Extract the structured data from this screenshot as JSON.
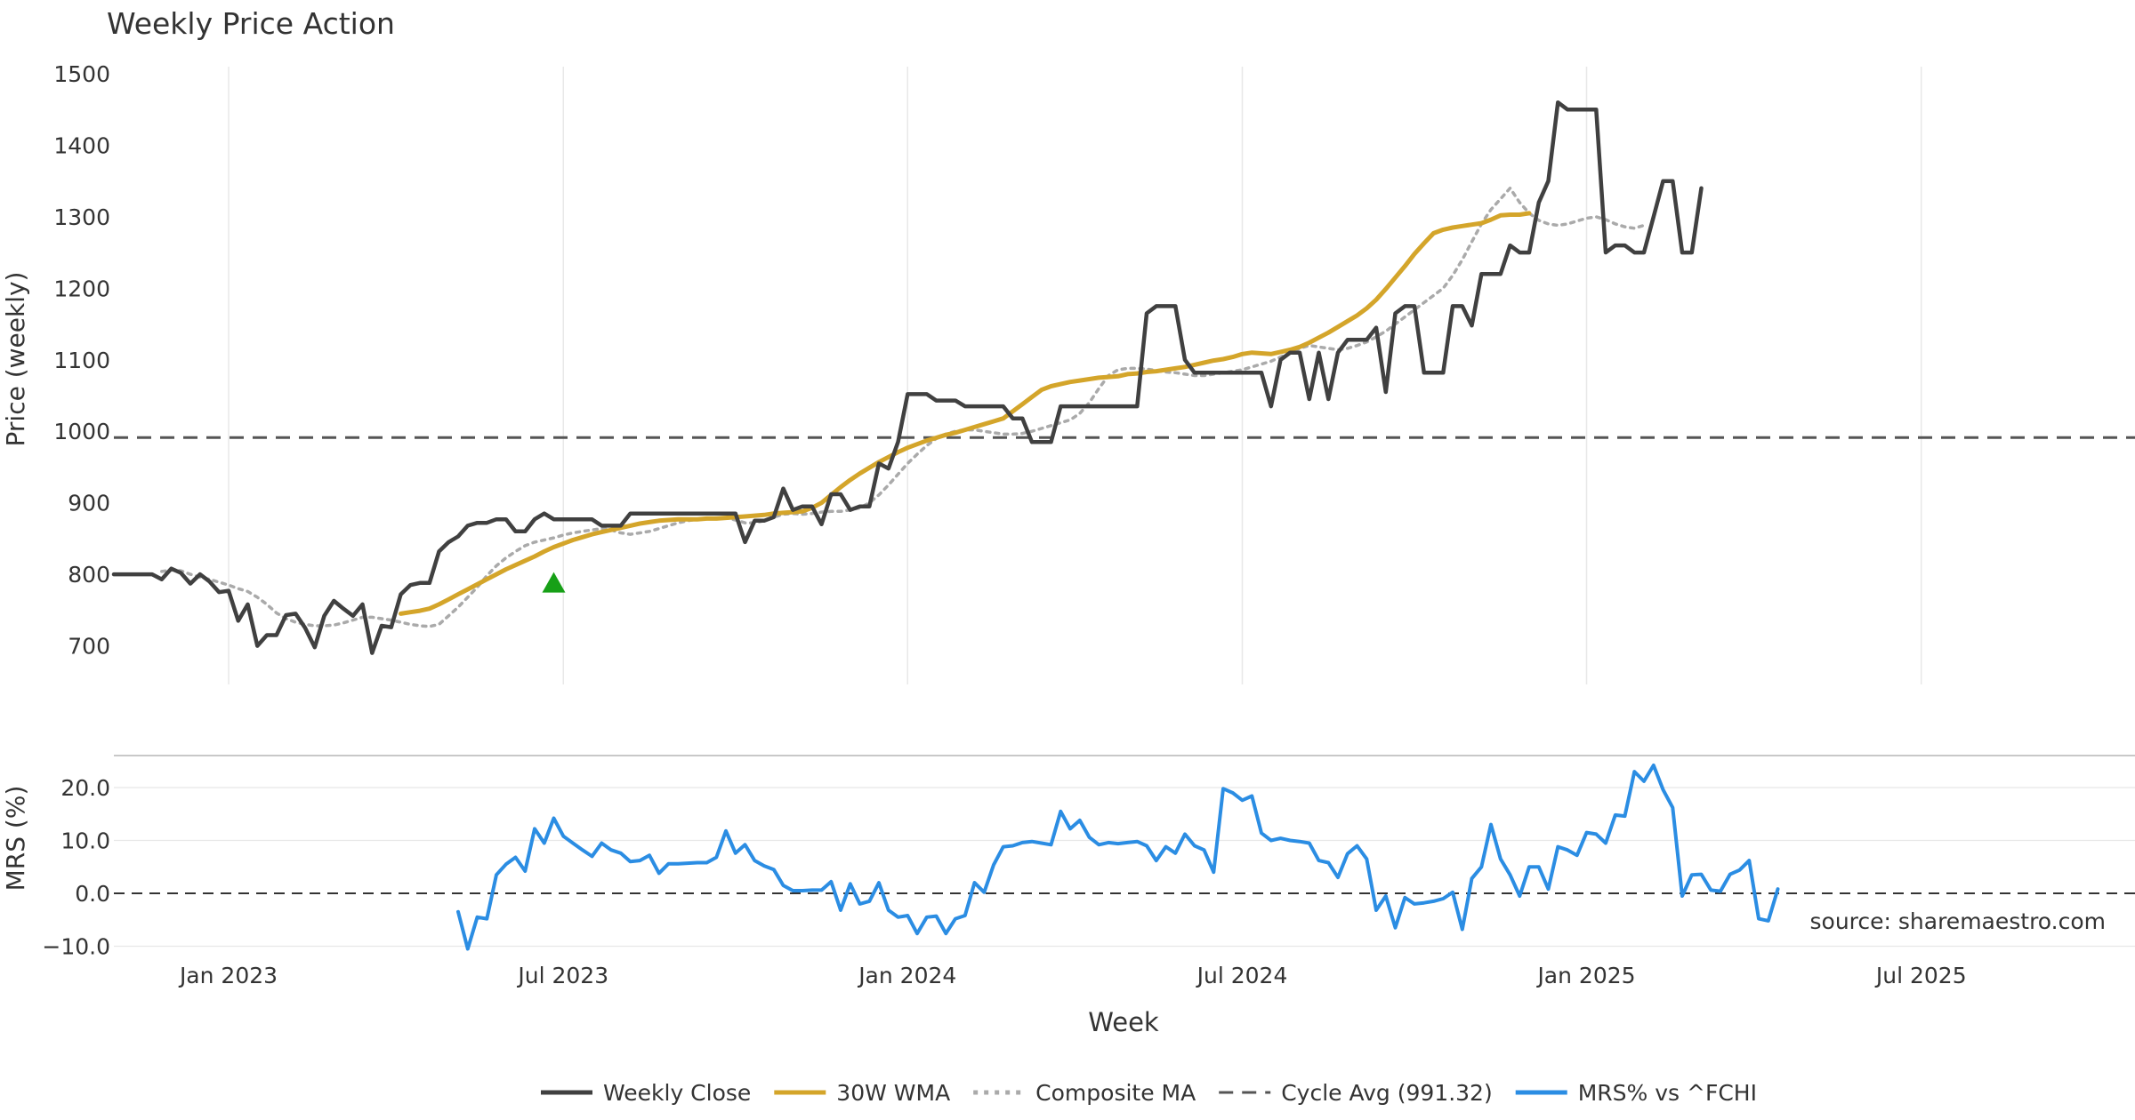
{
  "title": "Weekly Price Action",
  "colors": {
    "close": "#404040",
    "wma": "#d4a52a",
    "composite": "#aaaaaa",
    "cycle": "#555555",
    "mrs": "#2b8de3",
    "signal": "#17a017",
    "grid": "#e8e8e8",
    "text": "#333333"
  },
  "source": "source: sharemaestro.com",
  "legend": [
    {
      "key": "close",
      "label": "Weekly Close",
      "style": "solid"
    },
    {
      "key": "wma",
      "label": "30W WMA",
      "style": "solid"
    },
    {
      "key": "composite",
      "label": "Composite MA",
      "style": "dotted"
    },
    {
      "key": "cycle",
      "label": "Cycle Avg (991.32)",
      "style": "dashed"
    },
    {
      "key": "mrs",
      "label": "MRS% vs ^FCHI",
      "style": "solid"
    }
  ],
  "chart_data": [
    {
      "type": "line",
      "panel": "price",
      "title": "Weekly Price Action",
      "xlabel": "Week",
      "ylabel": "Price (weekly)",
      "x_ticks": [
        "Jan 2023",
        "Jul 2023",
        "Jan 2024",
        "Jul 2024",
        "Jan 2025",
        "Jul 2025"
      ],
      "x_tick_weeks": [
        12,
        47,
        83,
        118,
        154,
        189
      ],
      "x_range_weeks": [
        0,
        212
      ],
      "ylim": [
        650,
        1500
      ],
      "y_ticks": [
        700,
        800,
        900,
        1000,
        1100,
        1200,
        1300,
        1400,
        1500
      ],
      "cycle_avg": 991.32,
      "signal": {
        "week": 46,
        "value": 787,
        "marker": "triangle-up"
      },
      "series": [
        {
          "name": "Weekly Close",
          "start_week": 0,
          "values": [
            800,
            800,
            800,
            800,
            800,
            793,
            808,
            802,
            787,
            800,
            790,
            775,
            777,
            735,
            758,
            700,
            715,
            715,
            743,
            745,
            725,
            698,
            742,
            763,
            752,
            742,
            758,
            690,
            728,
            726,
            772,
            785,
            788,
            788,
            832,
            845,
            853,
            868,
            872,
            872,
            877,
            877,
            860,
            860,
            877,
            885,
            877,
            877,
            877,
            877,
            877,
            868,
            868,
            868,
            885,
            885,
            885,
            885,
            885,
            885,
            885,
            885,
            885,
            885,
            885,
            885,
            845,
            875,
            875,
            880,
            920,
            890,
            895,
            895,
            870,
            912,
            912,
            890,
            895,
            895,
            955,
            948,
            985,
            1052,
            1052,
            1052,
            1043,
            1043,
            1043,
            1035,
            1035,
            1035,
            1035,
            1035,
            1018,
            1018,
            985,
            985,
            985,
            1035,
            1035,
            1035,
            1035,
            1035,
            1035,
            1035,
            1035,
            1035,
            1165,
            1175,
            1175,
            1175,
            1100,
            1082,
            1082,
            1082,
            1082,
            1082,
            1082,
            1082,
            1082,
            1035,
            1100,
            1110,
            1110,
            1045,
            1110,
            1045,
            1110,
            1128,
            1128,
            1128,
            1145,
            1055,
            1165,
            1175,
            1175,
            1082,
            1082,
            1082,
            1175,
            1175,
            1148,
            1220,
            1220,
            1220,
            1260,
            1250,
            1250,
            1320,
            1350,
            1460,
            1450,
            1450,
            1450,
            1450,
            1250,
            1260,
            1260,
            1250,
            1250,
            1300,
            1350,
            1350,
            1250,
            1250,
            1340
          ]
        },
        {
          "name": "30W WMA",
          "start_week": 30,
          "values": [
            745,
            747,
            749,
            752,
            758,
            765,
            772,
            779,
            786,
            793,
            800,
            807,
            813,
            819,
            825,
            832,
            838,
            843,
            848,
            852,
            856,
            859,
            862,
            865,
            868,
            871,
            873,
            875,
            876,
            877,
            877,
            877,
            878,
            878,
            879,
            880,
            881,
            882,
            883,
            885,
            886,
            887,
            888,
            893,
            900,
            911,
            922,
            932,
            941,
            949,
            957,
            964,
            971,
            977,
            982,
            987,
            991,
            995,
            998,
            1002,
            1006,
            1010,
            1014,
            1018,
            1028,
            1038,
            1048,
            1058,
            1063,
            1066,
            1069,
            1071,
            1073,
            1075,
            1076,
            1077,
            1080,
            1081,
            1083,
            1084,
            1086,
            1088,
            1090,
            1093,
            1096,
            1099,
            1101,
            1104,
            1108,
            1110,
            1109,
            1108,
            1111,
            1114,
            1118,
            1124,
            1131,
            1138,
            1146,
            1154,
            1162,
            1172,
            1184,
            1199,
            1215,
            1231,
            1248,
            1263,
            1277,
            1282,
            1285,
            1287,
            1289,
            1291,
            1296,
            1302,
            1303,
            1303,
            1305
          ]
        },
        {
          "name": "Composite MA",
          "start_week": 5,
          "values": [
            804,
            806,
            805,
            800,
            796,
            793,
            789,
            785,
            780,
            776,
            768,
            758,
            746,
            738,
            733,
            730,
            728,
            728,
            729,
            732,
            736,
            740,
            740,
            738,
            736,
            733,
            730,
            728,
            727,
            730,
            742,
            754,
            768,
            782,
            798,
            812,
            823,
            832,
            840,
            845,
            848,
            851,
            855,
            858,
            860,
            862,
            864,
            862,
            858,
            856,
            858,
            860,
            864,
            868,
            872,
            875,
            877,
            878,
            879,
            879,
            876,
            872,
            872,
            875,
            880,
            884,
            885,
            884,
            885,
            887,
            888,
            888,
            890,
            893,
            900,
            911,
            925,
            940,
            955,
            968,
            980,
            990,
            996,
            1000,
            1002,
            1002,
            1000,
            998,
            996,
            996,
            997,
            1000,
            1004,
            1008,
            1012,
            1016,
            1025,
            1040,
            1060,
            1078,
            1086,
            1088,
            1088,
            1087,
            1085,
            1083,
            1082,
            1080,
            1078,
            1078,
            1080,
            1082,
            1084,
            1086,
            1090,
            1094,
            1098,
            1104,
            1110,
            1116,
            1120,
            1118,
            1116,
            1114,
            1116,
            1120,
            1125,
            1132,
            1140,
            1150,
            1160,
            1170,
            1180,
            1190,
            1200,
            1218,
            1240,
            1265,
            1290,
            1310,
            1325,
            1340,
            1320,
            1305,
            1295,
            1290,
            1288,
            1290,
            1294,
            1298,
            1300,
            1296,
            1290,
            1286,
            1284,
            1288
          ]
        }
      ]
    },
    {
      "type": "line",
      "panel": "mrs",
      "ylabel": "MRS (%)",
      "ylim": [
        -12,
        25
      ],
      "y_ticks": [
        20.0,
        10.0,
        0.0,
        -10.0
      ],
      "y_tick_labels": [
        "20.0",
        "10.0",
        "0.0",
        "−10.0"
      ],
      "zero_line": 0.0,
      "series": [
        {
          "name": "MRS% vs ^FCHI",
          "start_week": 36,
          "values": [
            -3.5,
            -10.5,
            -4.5,
            -4.8,
            3.5,
            5.5,
            6.8,
            4.2,
            12.2,
            9.5,
            14.2,
            10.8,
            9.5,
            8.2,
            7.0,
            9.5,
            8.2,
            7.6,
            6.0,
            6.2,
            7.2,
            3.8,
            5.6,
            5.6,
            5.7,
            5.8,
            5.8,
            6.8,
            11.8,
            7.6,
            9.2,
            6.2,
            5.2,
            4.5,
            1.5,
            0.5,
            0.5,
            0.6,
            0.6,
            2.2,
            -3.2,
            1.8,
            -2.0,
            -1.5,
            2.0,
            -3.2,
            -4.5,
            -4.2,
            -7.6,
            -4.5,
            -4.3,
            -7.6,
            -4.8,
            -4.2,
            2.0,
            0.2,
            5.4,
            8.8,
            9.0,
            9.6,
            9.8,
            9.5,
            9.2,
            15.5,
            12.2,
            13.8,
            10.6,
            9.2,
            9.6,
            9.4,
            9.6,
            9.8,
            9.0,
            6.2,
            8.8,
            7.6,
            11.2,
            9.0,
            8.2,
            4.0,
            19.8,
            19.0,
            17.6,
            18.4,
            11.4,
            10.0,
            10.4,
            10.0,
            9.8,
            9.5,
            6.2,
            5.8,
            3.0,
            7.5,
            9.0,
            6.5,
            -3.2,
            -0.5,
            -6.5,
            -0.8,
            -2.0,
            -1.8,
            -1.5,
            -1.0,
            0.2,
            -6.8,
            2.8,
            5.0,
            13.0,
            6.5,
            3.5,
            -0.5,
            5.0,
            5.0,
            0.8,
            8.8,
            8.2,
            7.2,
            11.5,
            11.2,
            9.5,
            14.8,
            14.6,
            23.0,
            21.2,
            24.2,
            19.6,
            16.2,
            -0.5,
            3.5,
            3.6,
            0.6,
            0.4,
            3.6,
            4.4,
            6.2,
            -4.8,
            -5.2,
            0.8
          ]
        }
      ]
    }
  ]
}
